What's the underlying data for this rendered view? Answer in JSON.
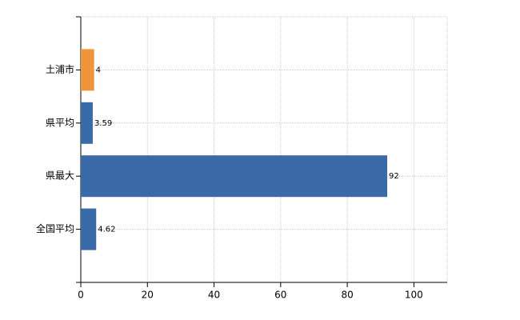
{
  "chart_data": {
    "type": "bar",
    "orientation": "horizontal",
    "categories": [
      "土浦市",
      "県平均",
      "県最大",
      "全国平均"
    ],
    "values": [
      4,
      3.59,
      92,
      4.62
    ],
    "colors": [
      "#f0943a",
      "#3a6ba8",
      "#3a6ba8",
      "#3a6ba8"
    ],
    "xlim": [
      0,
      110
    ],
    "xticks": [
      0,
      20,
      40,
      60,
      80,
      100
    ],
    "grid": true
  }
}
